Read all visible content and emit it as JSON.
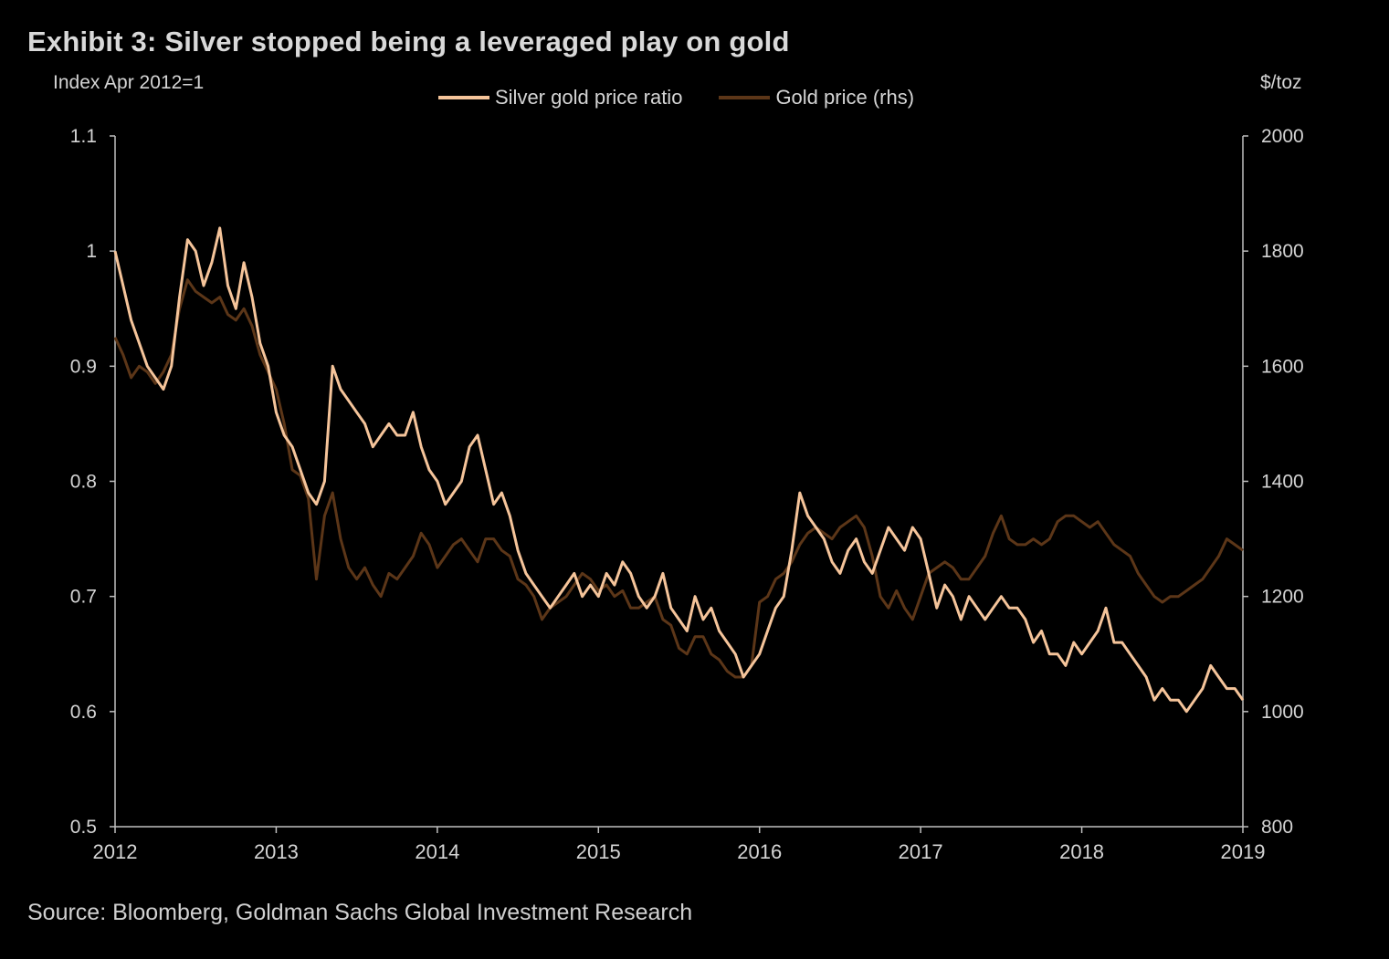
{
  "title": "Exhibit 3: Silver stopped being a leveraged play on gold",
  "source": "Source: Bloomberg, Goldman Sachs Global Investment Research",
  "colors": {
    "background": "#000000",
    "silver_ratio": "#f5c49a",
    "gold_price": "#5c3618",
    "axis": "#bfbfbf",
    "text": "#d4d4d4"
  },
  "chart_data": {
    "type": "line",
    "left_axis_label": "Index Apr 2012=1",
    "right_axis_label": "$/toz",
    "x_ticks": [
      "2012",
      "2013",
      "2014",
      "2015",
      "2016",
      "2017",
      "2018",
      "2019"
    ],
    "xlim": [
      2012,
      2019
    ],
    "y_left": {
      "ticks": [
        "0.5",
        "0.6",
        "0.7",
        "0.8",
        "0.9",
        "1",
        "1.1"
      ],
      "ylim": [
        0.5,
        1.1
      ]
    },
    "y_right": {
      "ticks": [
        "800",
        "1000",
        "1200",
        "1400",
        "1600",
        "1800",
        "2000"
      ],
      "ylim": [
        800,
        2000
      ]
    },
    "legend_position": "top-center",
    "series": [
      {
        "name": "Silver gold price ratio",
        "axis": "left",
        "x": [
          2012.0,
          2012.05,
          2012.1,
          2012.15,
          2012.2,
          2012.25,
          2012.3,
          2012.35,
          2012.4,
          2012.45,
          2012.5,
          2012.55,
          2012.6,
          2012.65,
          2012.7,
          2012.75,
          2012.8,
          2012.85,
          2012.9,
          2012.95,
          2013.0,
          2013.05,
          2013.1,
          2013.15,
          2013.2,
          2013.25,
          2013.3,
          2013.35,
          2013.4,
          2013.45,
          2013.5,
          2013.55,
          2013.6,
          2013.65,
          2013.7,
          2013.75,
          2013.8,
          2013.85,
          2013.9,
          2013.95,
          2014.0,
          2014.05,
          2014.1,
          2014.15,
          2014.2,
          2014.25,
          2014.3,
          2014.35,
          2014.4,
          2014.45,
          2014.5,
          2014.55,
          2014.6,
          2014.65,
          2014.7,
          2014.75,
          2014.8,
          2014.85,
          2014.9,
          2014.95,
          2015.0,
          2015.05,
          2015.1,
          2015.15,
          2015.2,
          2015.25,
          2015.3,
          2015.35,
          2015.4,
          2015.45,
          2015.5,
          2015.55,
          2015.6,
          2015.65,
          2015.7,
          2015.75,
          2015.8,
          2015.85,
          2015.9,
          2015.95,
          2016.0,
          2016.05,
          2016.1,
          2016.15,
          2016.2,
          2016.25,
          2016.3,
          2016.35,
          2016.4,
          2016.45,
          2016.5,
          2016.55,
          2016.6,
          2016.65,
          2016.7,
          2016.75,
          2016.8,
          2016.85,
          2016.9,
          2016.95,
          2017.0,
          2017.05,
          2017.1,
          2017.15,
          2017.2,
          2017.25,
          2017.3,
          2017.35,
          2017.4,
          2017.45,
          2017.5,
          2017.55,
          2017.6,
          2017.65,
          2017.7,
          2017.75,
          2017.8,
          2017.85,
          2017.9,
          2017.95,
          2018.0,
          2018.05,
          2018.1,
          2018.15,
          2018.2,
          2018.25,
          2018.3,
          2018.35,
          2018.4,
          2018.45,
          2018.5,
          2018.55,
          2018.6,
          2018.65,
          2018.7,
          2018.75,
          2018.8,
          2018.85,
          2018.9,
          2018.95,
          2019.0
        ],
        "values": [
          1.0,
          0.97,
          0.94,
          0.92,
          0.9,
          0.89,
          0.88,
          0.9,
          0.96,
          1.01,
          1.0,
          0.97,
          0.99,
          1.02,
          0.97,
          0.95,
          0.99,
          0.96,
          0.92,
          0.9,
          0.86,
          0.84,
          0.83,
          0.81,
          0.79,
          0.78,
          0.8,
          0.9,
          0.88,
          0.87,
          0.86,
          0.85,
          0.83,
          0.84,
          0.85,
          0.84,
          0.84,
          0.86,
          0.83,
          0.81,
          0.8,
          0.78,
          0.79,
          0.8,
          0.83,
          0.84,
          0.81,
          0.78,
          0.79,
          0.77,
          0.74,
          0.72,
          0.71,
          0.7,
          0.69,
          0.7,
          0.71,
          0.72,
          0.7,
          0.71,
          0.7,
          0.72,
          0.71,
          0.73,
          0.72,
          0.7,
          0.69,
          0.7,
          0.72,
          0.69,
          0.68,
          0.67,
          0.7,
          0.68,
          0.69,
          0.67,
          0.66,
          0.65,
          0.63,
          0.64,
          0.65,
          0.67,
          0.69,
          0.7,
          0.74,
          0.79,
          0.77,
          0.76,
          0.75,
          0.73,
          0.72,
          0.74,
          0.75,
          0.73,
          0.72,
          0.74,
          0.76,
          0.75,
          0.74,
          0.76,
          0.75,
          0.72,
          0.69,
          0.71,
          0.7,
          0.68,
          0.7,
          0.69,
          0.68,
          0.69,
          0.7,
          0.69,
          0.69,
          0.68,
          0.66,
          0.67,
          0.65,
          0.65,
          0.64,
          0.66,
          0.65,
          0.66,
          0.67,
          0.69,
          0.66,
          0.66,
          0.65,
          0.64,
          0.63,
          0.61,
          0.62,
          0.61,
          0.61,
          0.6,
          0.61,
          0.62,
          0.64,
          0.63,
          0.62,
          0.62,
          0.61
        ]
      },
      {
        "name": "Gold price (rhs)",
        "axis": "right",
        "x": [
          2012.0,
          2012.05,
          2012.1,
          2012.15,
          2012.2,
          2012.25,
          2012.3,
          2012.35,
          2012.4,
          2012.45,
          2012.5,
          2012.55,
          2012.6,
          2012.65,
          2012.7,
          2012.75,
          2012.8,
          2012.85,
          2012.9,
          2012.95,
          2013.0,
          2013.05,
          2013.1,
          2013.15,
          2013.2,
          2013.25,
          2013.3,
          2013.35,
          2013.4,
          2013.45,
          2013.5,
          2013.55,
          2013.6,
          2013.65,
          2013.7,
          2013.75,
          2013.8,
          2013.85,
          2013.9,
          2013.95,
          2014.0,
          2014.05,
          2014.1,
          2014.15,
          2014.2,
          2014.25,
          2014.3,
          2014.35,
          2014.4,
          2014.45,
          2014.5,
          2014.55,
          2014.6,
          2014.65,
          2014.7,
          2014.75,
          2014.8,
          2014.85,
          2014.9,
          2014.95,
          2015.0,
          2015.05,
          2015.1,
          2015.15,
          2015.2,
          2015.25,
          2015.3,
          2015.35,
          2015.4,
          2015.45,
          2015.5,
          2015.55,
          2015.6,
          2015.65,
          2015.7,
          2015.75,
          2015.8,
          2015.85,
          2015.9,
          2015.95,
          2016.0,
          2016.05,
          2016.1,
          2016.15,
          2016.2,
          2016.25,
          2016.3,
          2016.35,
          2016.4,
          2016.45,
          2016.5,
          2016.55,
          2016.6,
          2016.65,
          2016.7,
          2016.75,
          2016.8,
          2016.85,
          2016.9,
          2016.95,
          2017.0,
          2017.05,
          2017.1,
          2017.15,
          2017.2,
          2017.25,
          2017.3,
          2017.35,
          2017.4,
          2017.45,
          2017.5,
          2017.55,
          2017.6,
          2017.65,
          2017.7,
          2017.75,
          2017.8,
          2017.85,
          2017.9,
          2017.95,
          2018.0,
          2018.05,
          2018.1,
          2018.15,
          2018.2,
          2018.25,
          2018.3,
          2018.35,
          2018.4,
          2018.45,
          2018.5,
          2018.55,
          2018.6,
          2018.65,
          2018.7,
          2018.75,
          2018.8,
          2018.85,
          2018.9,
          2018.95,
          2019.0
        ],
        "values": [
          1650,
          1620,
          1580,
          1600,
          1590,
          1570,
          1590,
          1620,
          1700,
          1750,
          1730,
          1720,
          1710,
          1720,
          1690,
          1680,
          1700,
          1670,
          1620,
          1590,
          1560,
          1500,
          1420,
          1410,
          1370,
          1230,
          1340,
          1380,
          1300,
          1250,
          1230,
          1250,
          1220,
          1200,
          1240,
          1230,
          1250,
          1270,
          1310,
          1290,
          1250,
          1270,
          1290,
          1300,
          1280,
          1260,
          1300,
          1300,
          1280,
          1270,
          1230,
          1220,
          1200,
          1160,
          1180,
          1190,
          1200,
          1220,
          1240,
          1230,
          1210,
          1220,
          1200,
          1210,
          1180,
          1180,
          1190,
          1200,
          1160,
          1150,
          1110,
          1100,
          1130,
          1130,
          1100,
          1090,
          1070,
          1060,
          1060,
          1080,
          1190,
          1200,
          1230,
          1240,
          1260,
          1290,
          1310,
          1320,
          1310,
          1300,
          1320,
          1330,
          1340,
          1320,
          1270,
          1200,
          1180,
          1210,
          1180,
          1160,
          1200,
          1240,
          1250,
          1260,
          1250,
          1230,
          1230,
          1250,
          1270,
          1310,
          1340,
          1300,
          1290,
          1290,
          1300,
          1290,
          1300,
          1330,
          1340,
          1340,
          1330,
          1320,
          1330,
          1310,
          1290,
          1280,
          1270,
          1240,
          1220,
          1200,
          1190,
          1200,
          1200,
          1210,
          1220,
          1230,
          1250,
          1270,
          1300,
          1290,
          1280
        ]
      }
    ]
  }
}
